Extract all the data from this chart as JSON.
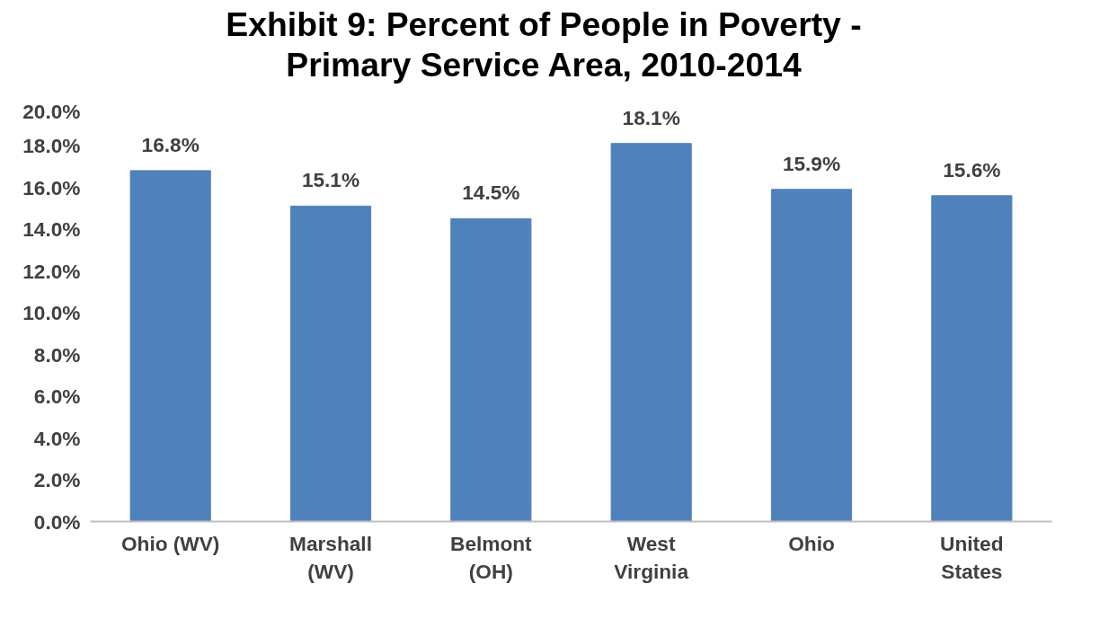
{
  "chart_data": {
    "type": "bar",
    "title": "Exhibit 9: Percent of People in Poverty -\nPrimary Service Area, 2010-2014",
    "categories": [
      "Ohio (WV)",
      "Marshall\n(WV)",
      "Belmont\n(OH)",
      "West\nVirginia",
      "Ohio",
      "United\nStates"
    ],
    "values": [
      16.8,
      15.1,
      14.5,
      18.1,
      15.9,
      15.6
    ],
    "value_labels": [
      "16.8%",
      "15.1%",
      "14.5%",
      "18.1%",
      "15.9%",
      "15.6%"
    ],
    "color": "#4f81bd",
    "ylim": [
      0,
      20
    ],
    "yticks": [
      {
        "value": 0,
        "label": "0.0%"
      },
      {
        "value": 2,
        "label": "2.0%"
      },
      {
        "value": 4,
        "label": "4.0%"
      },
      {
        "value": 6,
        "label": "6.0%"
      },
      {
        "value": 8,
        "label": "8.0%"
      },
      {
        "value": 10,
        "label": "10.0%"
      },
      {
        "value": 12,
        "label": "12.0%"
      },
      {
        "value": 14,
        "label": "14.0%"
      },
      {
        "value": 16,
        "label": "16.0%"
      },
      {
        "value": 18,
        "label": "18.0%"
      },
      {
        "value": 20,
        "label": "20.0%"
      }
    ],
    "grid": false
  }
}
